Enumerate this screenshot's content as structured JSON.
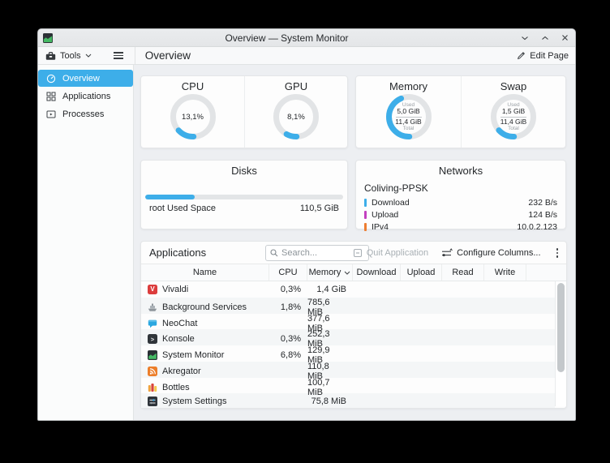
{
  "window": {
    "title": "Overview — System Monitor"
  },
  "toolbar": {
    "tools_label": "Tools",
    "page_title": "Overview",
    "edit_page_label": "Edit Page"
  },
  "sidebar": {
    "items": [
      {
        "label": "Overview",
        "selected": true
      },
      {
        "label": "Applications",
        "selected": false
      },
      {
        "label": "Processes",
        "selected": false
      }
    ]
  },
  "colors": {
    "accent": "#3daee9",
    "download": "#3daee9",
    "upload": "#c340c0",
    "ipv4": "#ed7d31"
  },
  "gauges": [
    {
      "title": "CPU",
      "value_label": "13,1%",
      "percent": 13.1
    },
    {
      "title": "GPU",
      "value_label": "8,1%",
      "percent": 8.1
    },
    {
      "title": "Memory",
      "used_label": "Used",
      "used": "5,0 GiB",
      "total": "11,4 GiB",
      "total_label": "Total",
      "percent": 43.9
    },
    {
      "title": "Swap",
      "used_label": "Used",
      "used": "1,5 GiB",
      "total": "11,4 GiB",
      "total_label": "Total",
      "percent": 13.2
    }
  ],
  "disks": {
    "title": "Disks",
    "bar_percent": 25,
    "label": "root Used Space",
    "value": "110,5 GiB"
  },
  "networks": {
    "title": "Networks",
    "interface": "Coliving-PPSK",
    "rows": [
      {
        "label": "Download",
        "value": "232 B/s",
        "color": "#3daee9"
      },
      {
        "label": "Upload",
        "value": "124 B/s",
        "color": "#c340c0"
      },
      {
        "label": "IPv4",
        "value": "10.0.2.123",
        "color": "#ed7d31"
      }
    ]
  },
  "applications": {
    "title": "Applications",
    "search_placeholder": "Search...",
    "quit_label": "Quit Application",
    "configure_label": "Configure Columns...",
    "columns": [
      "Name",
      "CPU",
      "Memory",
      "Download",
      "Upload",
      "Read",
      "Write"
    ],
    "sort_column": "Memory",
    "rows": [
      {
        "name": "Vivaldi",
        "cpu": "0,3%",
        "memory": "1,4 GiB"
      },
      {
        "name": "Background Services",
        "cpu": "1,8%",
        "memory": "785,6 MiB"
      },
      {
        "name": "NeoChat",
        "cpu": "",
        "memory": "377,6 MiB"
      },
      {
        "name": "Konsole",
        "cpu": "0,3%",
        "memory": "252,3 MiB"
      },
      {
        "name": "System Monitor",
        "cpu": "6,8%",
        "memory": "129,9 MiB"
      },
      {
        "name": "Akregator",
        "cpu": "",
        "memory": "110,8 MiB"
      },
      {
        "name": "Bottles",
        "cpu": "",
        "memory": "100,7 MiB"
      },
      {
        "name": "System Settings",
        "cpu": "",
        "memory": "75,8 MiB"
      }
    ]
  }
}
